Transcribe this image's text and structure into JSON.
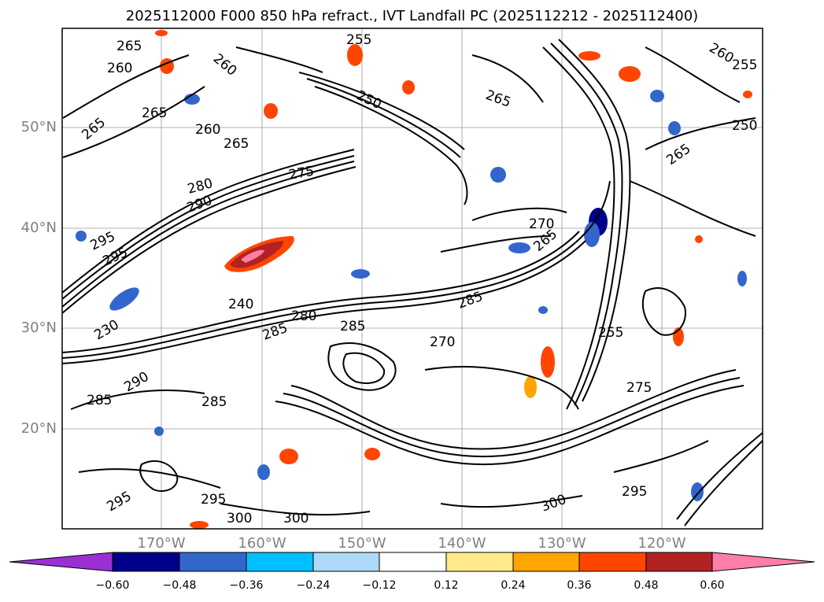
{
  "title": "2025112000 F000 850 hPa refract., IVT Landfall PC (2025112212 - 2025112400)",
  "map": {
    "lat_labels": [
      "50°N",
      "40°N",
      "30°N",
      "20°N"
    ],
    "lon_labels": [
      "170°W",
      "160°W",
      "150°W",
      "140°W",
      "130°W",
      "120°W"
    ],
    "contour_labels": [
      "265",
      "260",
      "265",
      "265",
      "260",
      "265",
      "250",
      "255",
      "260",
      "260",
      "255",
      "250",
      "265",
      "280",
      "290",
      "295",
      "295",
      "275",
      "270",
      "265",
      "240",
      "280",
      "285",
      "285",
      "270",
      "265",
      "230",
      "255",
      "290",
      "285",
      "285",
      "300",
      "295",
      "300",
      "300",
      "295",
      "285",
      "275",
      "295"
    ]
  },
  "colorbar": {
    "tick_labels": [
      "−0.60",
      "−0.48",
      "−0.36",
      "−0.24",
      "−0.12",
      "0.12",
      "0.24",
      "0.36",
      "0.48",
      "0.60"
    ],
    "colors": [
      "#9b30d2",
      "#00008b",
      "#3366cc",
      "#00bfff",
      "#add8f7",
      "#ffffff",
      "#ffe98a",
      "#ffa500",
      "#ff4500",
      "#b22222",
      "#ff7fa8"
    ]
  }
}
